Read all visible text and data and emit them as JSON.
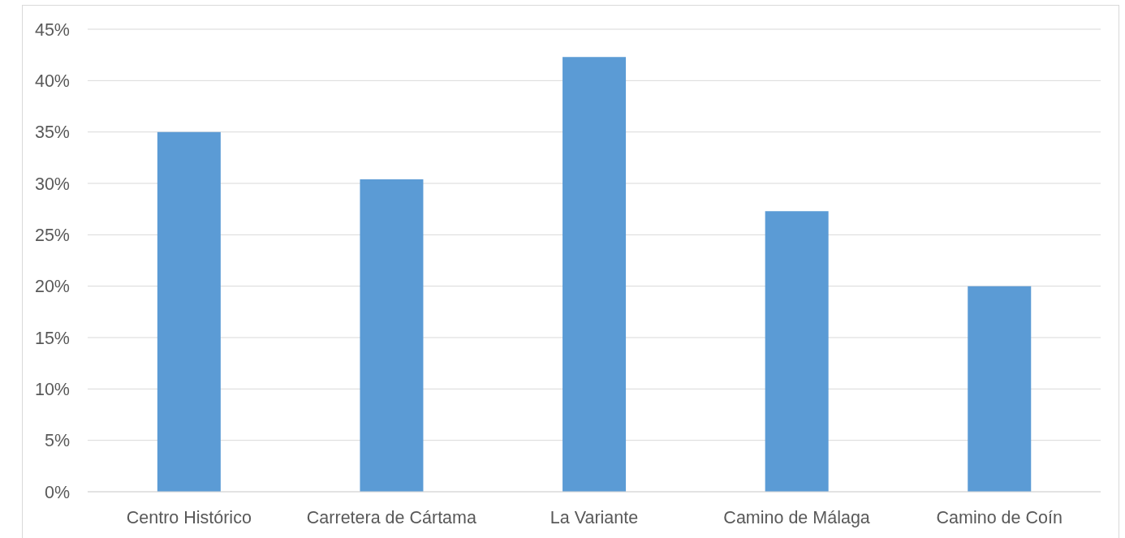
{
  "chart_data": {
    "type": "bar",
    "categories": [
      "Centro Histórico",
      "Carretera de Cártama",
      "La Variante",
      "Camino de Málaga",
      "Camino de Coín"
    ],
    "values": [
      35,
      30.4,
      42.3,
      27.3,
      20
    ],
    "color": "#5b9bd5",
    "ylim": [
      0,
      45
    ],
    "yticks": [
      {
        "value": 0,
        "label": "0%"
      },
      {
        "value": 5,
        "label": "5%"
      },
      {
        "value": 10,
        "label": "10%"
      },
      {
        "value": 15,
        "label": "15%"
      },
      {
        "value": 20,
        "label": "20%"
      },
      {
        "value": 25,
        "label": "25%"
      },
      {
        "value": 30,
        "label": "30%"
      },
      {
        "value": 35,
        "label": "35%"
      },
      {
        "value": 40,
        "label": "40%"
      },
      {
        "value": 45,
        "label": "45%"
      }
    ],
    "grid": "y"
  }
}
